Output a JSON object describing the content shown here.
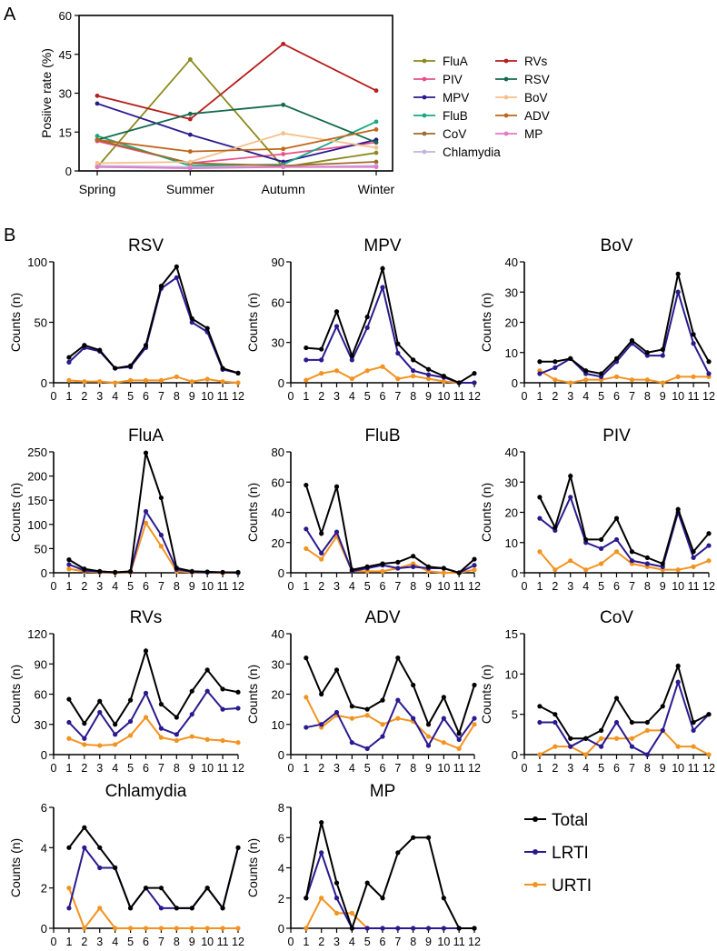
{
  "panel_labels": {
    "a": "A",
    "b": "B"
  },
  "legend_b": [
    {
      "name": "Total",
      "color": "#000000"
    },
    {
      "name": "LRTI",
      "color": "#2a1a8e"
    },
    {
      "name": "URTI",
      "color": "#f39320"
    }
  ],
  "chart_data": [
    {
      "type": "line",
      "panel": "A",
      "title": "",
      "xlabel": "",
      "ylabel": "Posiive rate (%)",
      "categories": [
        "Spring",
        "Summer",
        "Autumn",
        "Winter"
      ],
      "ylim": [
        0,
        60
      ],
      "yticks": [
        0,
        15,
        30,
        45,
        60
      ],
      "legend_columns": [
        [
          "FluA",
          "PIV",
          "MPV",
          "FluB",
          "CoV",
          "Chlamydia"
        ],
        [
          "RVs",
          "RSV",
          "BoV",
          "ADV",
          "MP"
        ]
      ],
      "series": [
        {
          "name": "FluA",
          "color": "#8a8a1e",
          "values": [
            1.5,
            43,
            1.5,
            7
          ]
        },
        {
          "name": "PIV",
          "color": "#e8508a",
          "values": [
            11.5,
            3,
            6.5,
            11
          ]
        },
        {
          "name": "MPV",
          "color": "#2a1a8e",
          "values": [
            26,
            14,
            3.5,
            12
          ]
        },
        {
          "name": "FluB",
          "color": "#1aa882",
          "values": [
            13.5,
            2,
            2.5,
            19
          ]
        },
        {
          "name": "CoV",
          "color": "#a06a2a",
          "values": [
            12,
            3,
            2,
            3.5
          ]
        },
        {
          "name": "Chlamydia",
          "color": "#c0b4e0",
          "values": [
            2,
            1.5,
            1.5,
            2
          ]
        },
        {
          "name": "RVs",
          "color": "#b81c1c",
          "values": [
            29,
            20,
            49,
            31
          ]
        },
        {
          "name": "RSV",
          "color": "#156a4e",
          "values": [
            12,
            22,
            25.5,
            11
          ]
        },
        {
          "name": "BoV",
          "color": "#f5c08a",
          "values": [
            3,
            3.5,
            14.5,
            9
          ]
        },
        {
          "name": "ADV",
          "color": "#c0661a",
          "values": [
            12,
            7.5,
            8.5,
            16
          ]
        },
        {
          "name": "MP",
          "color": "#e278c8",
          "values": [
            1.5,
            1,
            1.5,
            1.5
          ]
        }
      ]
    },
    {
      "type": "line",
      "title": "RSV",
      "ylabel": "Counts (n)",
      "x": [
        1,
        2,
        3,
        4,
        5,
        6,
        7,
        8,
        9,
        10,
        11,
        12
      ],
      "xticks": [
        0,
        1,
        2,
        3,
        4,
        5,
        6,
        7,
        8,
        9,
        10,
        11,
        12
      ],
      "ylim": [
        0,
        100
      ],
      "yticks": [
        0,
        50,
        100
      ],
      "series": [
        {
          "name": "Total",
          "values": [
            21,
            31,
            27,
            12,
            14,
            31,
            80,
            96,
            53,
            45,
            12,
            8
          ]
        },
        {
          "name": "LRTI",
          "values": [
            17,
            29,
            26,
            12,
            13,
            29,
            78,
            87,
            50,
            42,
            11,
            8
          ]
        },
        {
          "name": "URTI",
          "values": [
            2,
            1,
            1,
            0,
            2,
            2,
            2,
            5,
            1,
            3,
            1,
            0
          ]
        }
      ]
    },
    {
      "type": "line",
      "title": "MPV",
      "ylabel": "Counts (n)",
      "x": [
        1,
        2,
        3,
        4,
        5,
        6,
        7,
        8,
        9,
        10,
        11,
        12
      ],
      "xticks": [
        0,
        1,
        2,
        3,
        4,
        5,
        6,
        7,
        8,
        9,
        10,
        11,
        12
      ],
      "ylim": [
        0,
        90
      ],
      "yticks": [
        0,
        30,
        60,
        90
      ],
      "series": [
        {
          "name": "Total",
          "values": [
            26,
            25,
            53,
            20,
            49,
            85,
            29,
            17,
            10,
            5,
            0,
            7
          ]
        },
        {
          "name": "LRTI",
          "values": [
            17,
            17,
            42,
            17,
            41,
            71,
            22,
            9,
            6,
            4,
            0,
            0
          ]
        },
        {
          "name": "URTI",
          "values": [
            2,
            7,
            9,
            3,
            9,
            12,
            3,
            5,
            3,
            1,
            0,
            0
          ]
        }
      ]
    },
    {
      "type": "line",
      "title": "BoV",
      "ylabel": "Counts (n)",
      "x": [
        1,
        2,
        3,
        4,
        5,
        6,
        7,
        8,
        9,
        10,
        11,
        12
      ],
      "xticks": [
        0,
        1,
        2,
        3,
        4,
        5,
        6,
        7,
        8,
        9,
        10,
        11,
        12
      ],
      "ylim": [
        0,
        40
      ],
      "yticks": [
        0,
        10,
        20,
        30,
        40
      ],
      "series": [
        {
          "name": "Total",
          "values": [
            7,
            7,
            8,
            4,
            3,
            8,
            14,
            10,
            11,
            36,
            16,
            7
          ]
        },
        {
          "name": "LRTI",
          "values": [
            3,
            5,
            8,
            3,
            2,
            7,
            13,
            9,
            9,
            30,
            13,
            3
          ]
        },
        {
          "name": "URTI",
          "values": [
            4,
            1,
            0,
            1,
            1,
            2,
            1,
            1,
            0,
            2,
            2,
            2
          ]
        }
      ]
    },
    {
      "type": "line",
      "title": "FluA",
      "ylabel": "Counts (n)",
      "x": [
        1,
        2,
        3,
        4,
        5,
        6,
        7,
        8,
        9,
        10,
        11,
        12
      ],
      "xticks": [
        0,
        1,
        2,
        3,
        4,
        5,
        6,
        7,
        8,
        9,
        10,
        11,
        12
      ],
      "ylim": [
        0,
        250
      ],
      "yticks": [
        0,
        50,
        100,
        150,
        200,
        250
      ],
      "series": [
        {
          "name": "Total",
          "values": [
            27,
            8,
            3,
            1,
            3,
            248,
            155,
            10,
            3,
            2,
            1,
            1
          ]
        },
        {
          "name": "LRTI",
          "values": [
            17,
            5,
            2,
            1,
            2,
            127,
            78,
            7,
            2,
            1,
            1,
            0
          ]
        },
        {
          "name": "URTI",
          "values": [
            8,
            3,
            1,
            0,
            1,
            103,
            55,
            3,
            1,
            1,
            0,
            0
          ]
        }
      ]
    },
    {
      "type": "line",
      "title": "FluB",
      "ylabel": "Counts (n)",
      "x": [
        1,
        2,
        3,
        4,
        5,
        6,
        7,
        8,
        9,
        10,
        11,
        12
      ],
      "xticks": [
        0,
        1,
        2,
        3,
        4,
        5,
        6,
        7,
        8,
        9,
        10,
        11,
        12
      ],
      "ylim": [
        0,
        80
      ],
      "yticks": [
        0,
        20,
        40,
        60,
        80
      ],
      "series": [
        {
          "name": "Total",
          "values": [
            58,
            26,
            57,
            2,
            4,
            6,
            7,
            11,
            4,
            3,
            0,
            9
          ]
        },
        {
          "name": "LRTI",
          "values": [
            29,
            13,
            27,
            1,
            3,
            5,
            3,
            4,
            3,
            3,
            0,
            5
          ]
        },
        {
          "name": "URTI",
          "values": [
            16,
            9,
            24,
            1,
            1,
            1,
            3,
            6,
            1,
            0,
            0,
            2
          ]
        }
      ]
    },
    {
      "type": "line",
      "title": "PIV",
      "ylabel": "Counts (n)",
      "x": [
        1,
        2,
        3,
        4,
        5,
        6,
        7,
        8,
        9,
        10,
        11,
        12
      ],
      "xticks": [
        0,
        1,
        2,
        3,
        4,
        5,
        6,
        7,
        8,
        9,
        10,
        11,
        12
      ],
      "ylim": [
        0,
        40
      ],
      "yticks": [
        0,
        10,
        20,
        30,
        40
      ],
      "series": [
        {
          "name": "Total",
          "values": [
            25,
            15,
            32,
            11,
            11,
            18,
            7,
            5,
            3,
            21,
            7,
            13
          ]
        },
        {
          "name": "LRTI",
          "values": [
            18,
            14,
            25,
            10,
            8,
            11,
            4,
            3,
            2,
            20,
            5,
            9
          ]
        },
        {
          "name": "URTI",
          "values": [
            7,
            1,
            4,
            1,
            3,
            7,
            3,
            2,
            1,
            1,
            2,
            4
          ]
        }
      ]
    },
    {
      "type": "line",
      "title": "RVs",
      "ylabel": "Counts (n)",
      "x": [
        1,
        2,
        3,
        4,
        5,
        6,
        7,
        8,
        9,
        10,
        11,
        12
      ],
      "xticks": [
        0,
        1,
        2,
        3,
        4,
        5,
        6,
        7,
        8,
        9,
        10,
        11,
        12
      ],
      "ylim": [
        0,
        120
      ],
      "yticks": [
        0,
        30,
        60,
        90,
        120
      ],
      "series": [
        {
          "name": "Total",
          "values": [
            55,
            31,
            53,
            30,
            54,
            103,
            50,
            37,
            63,
            84,
            65,
            62
          ]
        },
        {
          "name": "LRTI",
          "values": [
            32,
            16,
            42,
            20,
            33,
            61,
            26,
            20,
            40,
            63,
            45,
            46
          ]
        },
        {
          "name": "URTI",
          "values": [
            16,
            10,
            9,
            10,
            19,
            37,
            17,
            14,
            18,
            15,
            14,
            12
          ]
        }
      ]
    },
    {
      "type": "line",
      "title": "ADV",
      "ylabel": "Counts (n)",
      "x": [
        1,
        2,
        3,
        4,
        5,
        6,
        7,
        8,
        9,
        10,
        11,
        12
      ],
      "xticks": [
        0,
        1,
        2,
        3,
        4,
        5,
        6,
        7,
        8,
        9,
        10,
        11,
        12
      ],
      "ylim": [
        0,
        40
      ],
      "yticks": [
        0,
        10,
        20,
        30,
        40
      ],
      "series": [
        {
          "name": "Total",
          "values": [
            32,
            20,
            28,
            16,
            15,
            18,
            32,
            23,
            10,
            19,
            7,
            23
          ]
        },
        {
          "name": "LRTI",
          "values": [
            9,
            10,
            14,
            4,
            2,
            6,
            18,
            12,
            3,
            12,
            5,
            12
          ]
        },
        {
          "name": "URTI",
          "values": [
            19,
            9,
            13,
            12,
            13,
            10,
            12,
            11,
            6,
            4,
            2,
            10
          ]
        }
      ]
    },
    {
      "type": "line",
      "title": "CoV",
      "ylabel": "Counts (n)",
      "x": [
        1,
        2,
        3,
        4,
        5,
        6,
        7,
        8,
        9,
        10,
        11,
        12
      ],
      "xticks": [
        0,
        1,
        2,
        3,
        4,
        5,
        6,
        7,
        8,
        9,
        10,
        11,
        12
      ],
      "ylim": [
        0,
        15
      ],
      "yticks": [
        0,
        5,
        10,
        15
      ],
      "series": [
        {
          "name": "Total",
          "values": [
            6,
            5,
            2,
            2,
            3,
            7,
            4,
            4,
            6,
            11,
            4,
            5
          ]
        },
        {
          "name": "LRTI",
          "values": [
            4,
            4,
            1,
            2,
            1,
            4,
            1,
            0,
            3,
            9,
            3,
            5
          ]
        },
        {
          "name": "URTI",
          "values": [
            0,
            1,
            1,
            0,
            2,
            2,
            2,
            3,
            3,
            1,
            1,
            0
          ]
        }
      ]
    },
    {
      "type": "line",
      "title": "Chlamydia",
      "ylabel": "Counts (n)",
      "x": [
        1,
        2,
        3,
        4,
        5,
        6,
        7,
        8,
        9,
        10,
        11,
        12
      ],
      "xticks": [
        0,
        1,
        2,
        3,
        4,
        5,
        6,
        7,
        8,
        9,
        10,
        11,
        12
      ],
      "ylim": [
        0,
        6
      ],
      "yticks": [
        0,
        2,
        4,
        6
      ],
      "series": [
        {
          "name": "Total",
          "values": [
            4,
            5,
            4,
            3,
            1,
            2,
            2,
            1,
            1,
            2,
            1,
            4
          ]
        },
        {
          "name": "LRTI",
          "values": [
            1,
            4,
            3,
            3,
            1,
            2,
            1,
            1,
            1,
            2,
            1,
            4
          ]
        },
        {
          "name": "URTI",
          "values": [
            2,
            0,
            1,
            0,
            0,
            0,
            0,
            0,
            0,
            0,
            0,
            0
          ]
        }
      ]
    },
    {
      "type": "line",
      "title": "MP",
      "ylabel": "Counts (n)",
      "x": [
        1,
        2,
        3,
        4,
        5,
        6,
        7,
        8,
        9,
        10,
        11,
        12
      ],
      "xticks": [
        0,
        1,
        2,
        3,
        4,
        5,
        6,
        7,
        8,
        9,
        10,
        11,
        12
      ],
      "ylim": [
        0,
        8
      ],
      "yticks": [
        0,
        2,
        4,
        6,
        8
      ],
      "series": [
        {
          "name": "Total",
          "values": [
            2,
            7,
            3,
            0,
            3,
            2,
            5,
            6,
            6,
            2,
            0,
            0
          ]
        },
        {
          "name": "LRTI",
          "values": [
            2,
            5,
            2,
            0,
            0,
            0,
            0,
            0,
            0,
            0,
            0,
            0
          ]
        },
        {
          "name": "URTI",
          "values": [
            0,
            2,
            1,
            1,
            0,
            0,
            0,
            0,
            0,
            0,
            0,
            0
          ]
        }
      ]
    }
  ]
}
